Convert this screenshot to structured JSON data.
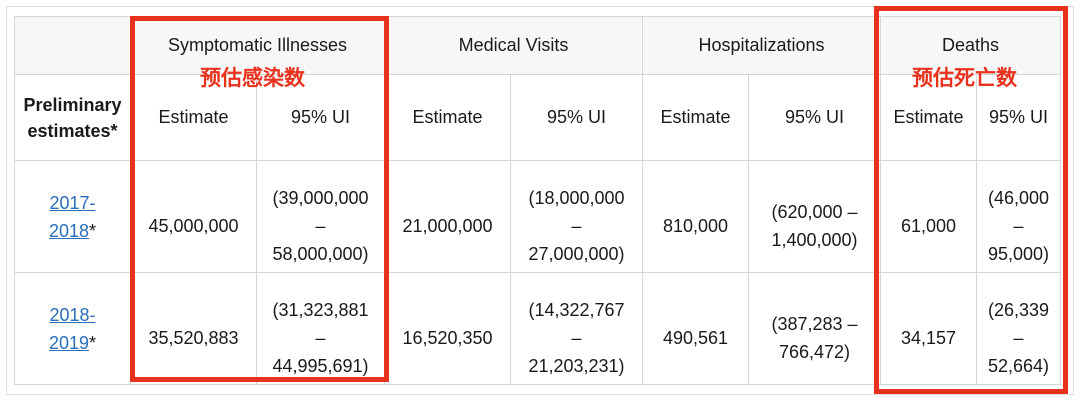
{
  "table": {
    "corner_label": "Preliminary estimates*",
    "groups": [
      "Symptomatic Illnesses",
      "Medical Visits",
      "Hospitalizations",
      "Deaths"
    ],
    "sub_headers": [
      "Estimate",
      "95% UI"
    ],
    "rows": [
      {
        "year_line1": "2017-",
        "year_line2": "2018",
        "asterisk": "*",
        "cells": [
          [
            "45,000,000"
          ],
          [
            "(39,000,000",
            "–",
            "58,000,000)"
          ],
          [
            "21,000,000"
          ],
          [
            "(18,000,000",
            "–",
            "27,000,000)"
          ],
          [
            "810,000"
          ],
          [
            "(620,000 –",
            "1,400,000)"
          ],
          [
            "61,000"
          ],
          [
            "(46,000",
            "–",
            "95,000)"
          ]
        ]
      },
      {
        "year_line1": "2018-",
        "year_line2": "2019",
        "asterisk": "*",
        "cells": [
          [
            "35,520,883"
          ],
          [
            "(31,323,881",
            "–",
            "44,995,691)"
          ],
          [
            "16,520,350"
          ],
          [
            "(14,322,767",
            "–",
            "21,203,231)"
          ],
          [
            "490,561"
          ],
          [
            "(387,283 –",
            "766,472)"
          ],
          [
            "34,157"
          ],
          [
            "(26,339",
            "–",
            "52,664)"
          ]
        ]
      }
    ]
  },
  "annotations": {
    "illness_label": "预估感染数",
    "deaths_label": "预估死亡数",
    "color": "#e9321e"
  }
}
